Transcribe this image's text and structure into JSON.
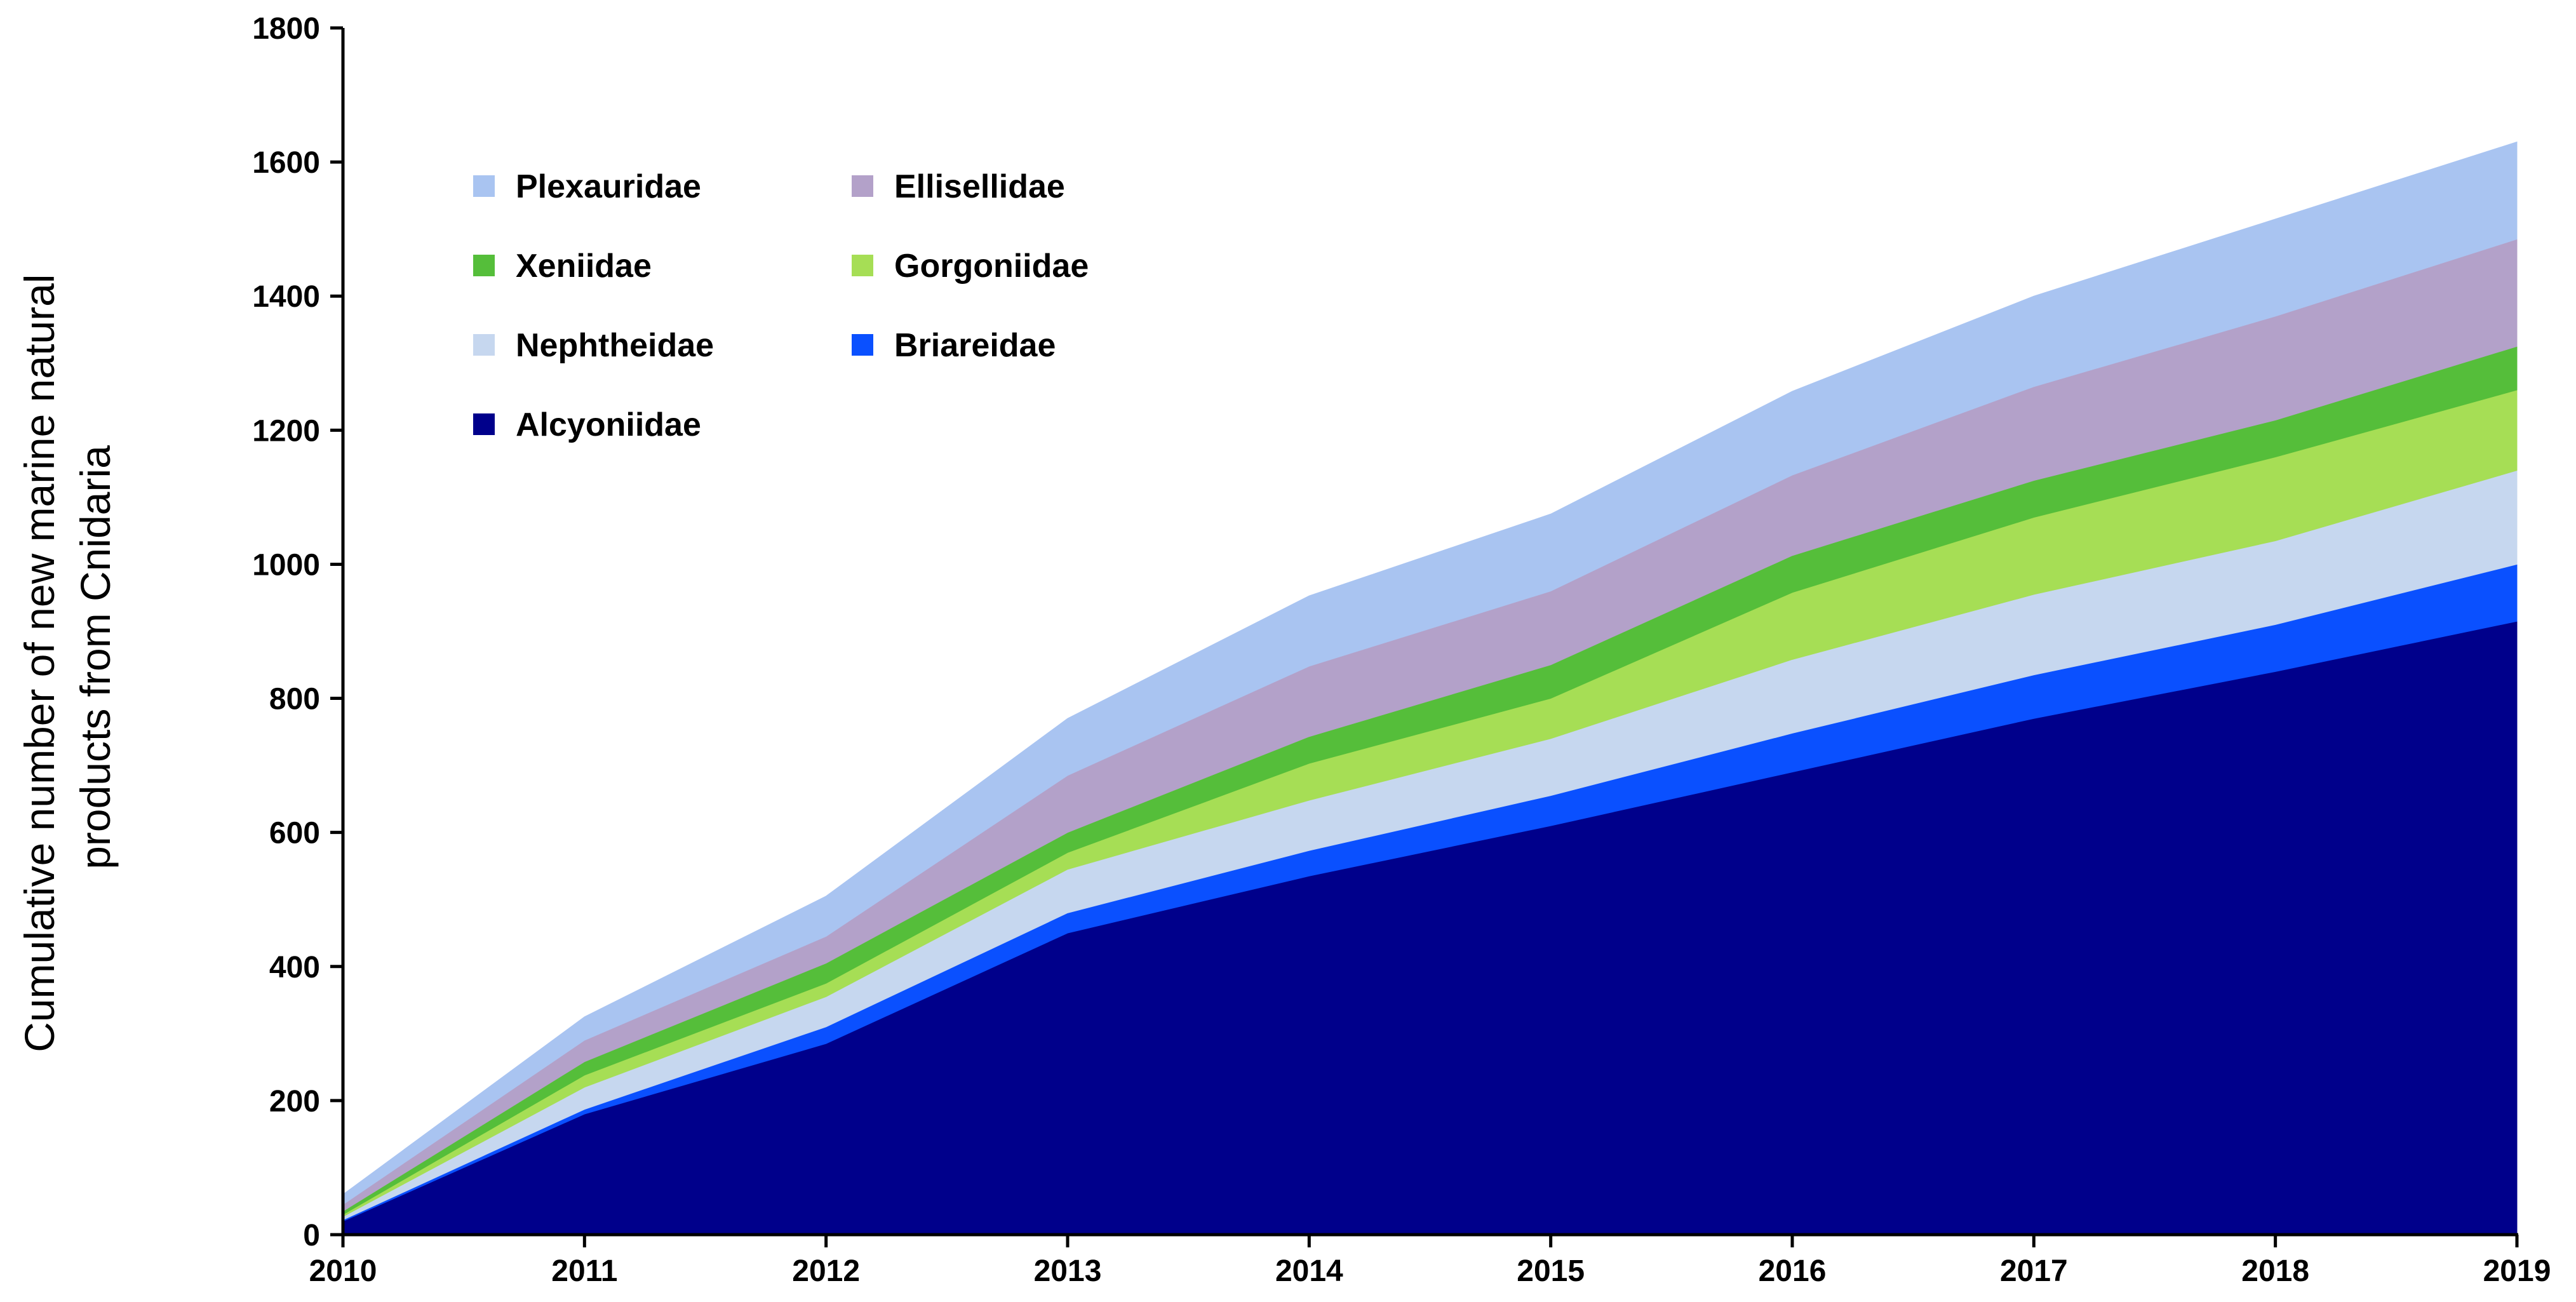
{
  "chart_data": {
    "type": "area",
    "stacked": true,
    "title": "",
    "xlabel": "",
    "ylabel_lines": [
      "Cumulative number of new marine natural",
      "products from Cnidaria"
    ],
    "x": [
      "2010",
      "2011",
      "2012",
      "2013",
      "2014",
      "2015",
      "2016",
      "2017",
      "2018",
      "2019"
    ],
    "ylim": [
      0,
      1800
    ],
    "yticks": [
      0,
      200,
      400,
      600,
      800,
      1000,
      1200,
      1400,
      1600,
      1800
    ],
    "grid": false,
    "legend_position": "top-left",
    "legend_order": [
      "Plexauridae",
      "Ellisellidae",
      "Xeniidae",
      "Gorgoniidae",
      "Nephtheidae",
      "Briareidae",
      "Alcyoniidae"
    ],
    "series": [
      {
        "name": "Alcyoniidae",
        "color": "#00008B",
        "values": [
          20,
          180,
          285,
          450,
          535,
          610,
          690,
          770,
          840,
          915
        ]
      },
      {
        "name": "Briareidae",
        "color": "#0A50FF",
        "values": [
          2,
          7,
          25,
          30,
          38,
          45,
          58,
          65,
          70,
          85
        ]
      },
      {
        "name": "Nephtheidae",
        "color": "#C6D7EF",
        "values": [
          5,
          33,
          45,
          65,
          75,
          85,
          110,
          120,
          125,
          140
        ]
      },
      {
        "name": "Gorgoniidae",
        "color": "#A6DE55",
        "values": [
          3,
          18,
          20,
          25,
          55,
          60,
          100,
          115,
          125,
          120
        ]
      },
      {
        "name": "Xeniidae",
        "color": "#55BE3A",
        "values": [
          5,
          20,
          30,
          30,
          40,
          50,
          55,
          55,
          55,
          65
        ]
      },
      {
        "name": "Ellisellidae",
        "color": "#B3A1C9",
        "values": [
          10,
          32,
          40,
          85,
          105,
          110,
          120,
          140,
          155,
          160
        ]
      },
      {
        "name": "Plexauridae",
        "color": "#A9C4F1",
        "values": [
          15,
          35,
          60,
          85,
          105,
          115,
          125,
          135,
          145,
          145
        ]
      }
    ]
  }
}
